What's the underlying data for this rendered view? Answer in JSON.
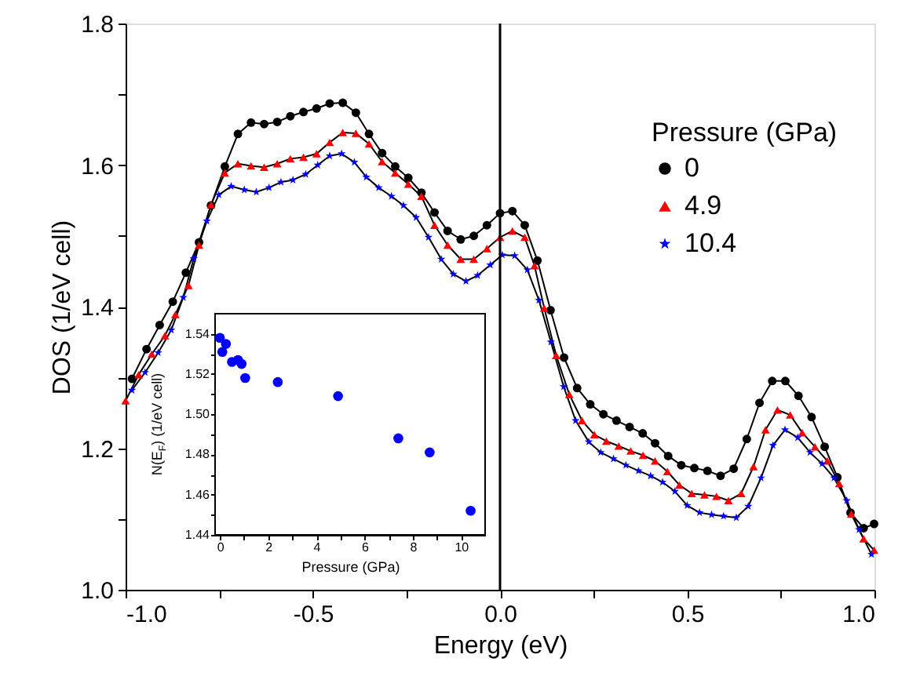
{
  "chart_data": [
    {
      "type": "line",
      "xlabel": "Energy (eV)",
      "ylabel": "DOS (1/eV cell)",
      "legend_title": "Pressure (GPa)",
      "legend": "right",
      "grid": false,
      "line_style": "solid",
      "xlim": [
        -1,
        1
      ],
      "ylim": [
        1,
        1.8
      ],
      "xticks": [
        {
          "value": -1,
          "label": "-1.0"
        },
        {
          "value": -0.75,
          "label": null
        },
        {
          "value": -0.5,
          "label": "-0.5"
        },
        {
          "value": -0.25,
          "label": null
        },
        {
          "value": 0,
          "label": "0.0"
        },
        {
          "value": 0.25,
          "label": null
        },
        {
          "value": 0.5,
          "label": "0.5"
        },
        {
          "value": 0.75,
          "label": null
        },
        {
          "value": 1,
          "label": "1.0"
        }
      ],
      "yticks": [
        {
          "value": 1,
          "label": "1.0"
        },
        {
          "value": 1.1,
          "label": null
        },
        {
          "value": 1.2,
          "label": "1.2"
        },
        {
          "value": 1.3,
          "label": null
        },
        {
          "value": 1.4,
          "label": "1.4"
        },
        {
          "value": 1.5,
          "label": null
        },
        {
          "value": 1.6,
          "label": "1.6"
        },
        {
          "value": 1.7,
          "label": null
        },
        {
          "value": 1.8,
          "label": "1.8"
        }
      ],
      "ref_lines": [
        {
          "axis": "x",
          "value": 0,
          "color": "#000000"
        }
      ],
      "series": [
        {
          "name": "0",
          "color": "#000000",
          "marker": "circle",
          "x": [
            -0.983,
            -0.944,
            -0.909,
            -0.874,
            -0.839,
            -0.804,
            -0.772,
            -0.735,
            -0.7,
            -0.665,
            -0.63,
            -0.595,
            -0.56,
            -0.525,
            -0.49,
            -0.455,
            -0.42,
            -0.385,
            -0.35,
            -0.315,
            -0.28,
            -0.245,
            -0.21,
            -0.175,
            -0.14,
            -0.105,
            -0.07,
            -0.035,
            0.0,
            0.033,
            0.066,
            0.1,
            0.135,
            0.171,
            0.206,
            0.241,
            0.276,
            0.311,
            0.346,
            0.381,
            0.414,
            0.449,
            0.484,
            0.519,
            0.554,
            0.589,
            0.624,
            0.659,
            0.693,
            0.727,
            0.762,
            0.797,
            0.832,
            0.867,
            0.901,
            0.936,
            0.971,
            0.999
          ],
          "values": [
            1.298,
            1.34,
            1.374,
            1.407,
            1.448,
            1.491,
            1.543,
            1.598,
            1.644,
            1.66,
            1.658,
            1.661,
            1.669,
            1.675,
            1.68,
            1.687,
            1.688,
            1.674,
            1.644,
            1.617,
            1.598,
            1.582,
            1.561,
            1.533,
            1.507,
            1.495,
            1.5,
            1.515,
            1.532,
            1.535,
            1.515,
            1.465,
            1.395,
            1.328,
            1.285,
            1.262,
            1.248,
            1.239,
            1.23,
            1.221,
            1.207,
            1.189,
            1.176,
            1.172,
            1.168,
            1.161,
            1.171,
            1.213,
            1.264,
            1.295,
            1.295,
            1.274,
            1.244,
            1.202,
            1.159,
            1.109,
            1.087,
            1.093
          ]
        },
        {
          "name": "4.9",
          "color": "#ff0000",
          "marker": "triangle",
          "x": [
            -1.0,
            -0.965,
            -0.93,
            -0.895,
            -0.867,
            -0.832,
            -0.804,
            -0.772,
            -0.735,
            -0.7,
            -0.665,
            -0.63,
            -0.595,
            -0.56,
            -0.525,
            -0.49,
            -0.455,
            -0.42,
            -0.385,
            -0.35,
            -0.315,
            -0.28,
            -0.245,
            -0.21,
            -0.175,
            -0.14,
            -0.105,
            -0.07,
            -0.035,
            0.0,
            0.033,
            0.066,
            0.092,
            0.118,
            0.15,
            0.185,
            0.219,
            0.252,
            0.284,
            0.317,
            0.349,
            0.382,
            0.414,
            0.447,
            0.479,
            0.512,
            0.546,
            0.578,
            0.61,
            0.644,
            0.677,
            0.709,
            0.741,
            0.775,
            0.807,
            0.841,
            0.874,
            0.906,
            0.938,
            0.971,
            0.999
          ],
          "values": [
            1.267,
            1.304,
            1.333,
            1.359,
            1.389,
            1.43,
            1.487,
            1.544,
            1.589,
            1.602,
            1.599,
            1.597,
            1.602,
            1.609,
            1.611,
            1.616,
            1.632,
            1.646,
            1.645,
            1.63,
            1.605,
            1.589,
            1.573,
            1.556,
            1.515,
            1.487,
            1.467,
            1.467,
            1.482,
            1.498,
            1.507,
            1.498,
            1.458,
            1.398,
            1.331,
            1.276,
            1.239,
            1.219,
            1.21,
            1.203,
            1.196,
            1.19,
            1.182,
            1.167,
            1.148,
            1.136,
            1.134,
            1.132,
            1.126,
            1.136,
            1.174,
            1.226,
            1.254,
            1.247,
            1.222,
            1.202,
            1.182,
            1.15,
            1.107,
            1.072,
            1.056
          ]
        },
        {
          "name": "10.4",
          "color": "#0000ff",
          "marker": "star",
          "x": [
            -0.983,
            -0.948,
            -0.913,
            -0.878,
            -0.846,
            -0.818,
            -0.783,
            -0.751,
            -0.718,
            -0.683,
            -0.651,
            -0.617,
            -0.585,
            -0.553,
            -0.519,
            -0.487,
            -0.455,
            -0.423,
            -0.389,
            -0.357,
            -0.324,
            -0.29,
            -0.258,
            -0.224,
            -0.191,
            -0.157,
            -0.125,
            -0.091,
            -0.06,
            -0.026,
            0.006,
            0.039,
            0.073,
            0.104,
            0.136,
            0.17,
            0.202,
            0.237,
            0.269,
            0.303,
            0.336,
            0.37,
            0.402,
            0.434,
            0.467,
            0.5,
            0.533,
            0.565,
            0.597,
            0.631,
            0.663,
            0.697,
            0.729,
            0.761,
            0.795,
            0.828,
            0.86,
            0.892,
            0.926,
            0.959,
            0.992
          ],
          "values": [
            1.282,
            1.307,
            1.335,
            1.367,
            1.413,
            1.468,
            1.521,
            1.558,
            1.57,
            1.565,
            1.562,
            1.568,
            1.576,
            1.579,
            1.587,
            1.6,
            1.613,
            1.616,
            1.604,
            1.583,
            1.568,
            1.556,
            1.543,
            1.526,
            1.498,
            1.467,
            1.446,
            1.436,
            1.444,
            1.459,
            1.473,
            1.472,
            1.452,
            1.409,
            1.35,
            1.287,
            1.239,
            1.209,
            1.194,
            1.185,
            1.176,
            1.168,
            1.161,
            1.152,
            1.139,
            1.119,
            1.109,
            1.106,
            1.104,
            1.102,
            1.118,
            1.158,
            1.204,
            1.226,
            1.215,
            1.194,
            1.178,
            1.158,
            1.126,
            1.085,
            1.05
          ]
        }
      ]
    },
    {
      "type": "scatter",
      "xlabel": "Pressure (GPa)",
      "ylabel": "N(E$_{F}$) (1/eV cell)",
      "grid": false,
      "marker": "circle",
      "xlim": [
        -0.2,
        11
      ],
      "ylim": [
        1.44,
        1.55
      ],
      "xticks": [
        0,
        {
          "value": 1,
          "label": null
        },
        2,
        {
          "value": 3,
          "label": null
        },
        4,
        {
          "value": 5,
          "label": null
        },
        6,
        {
          "value": 7,
          "label": null
        },
        8,
        {
          "value": 9,
          "label": null
        },
        10
      ],
      "yticks": [
        {
          "value": 1.44,
          "label": "1.44"
        },
        {
          "value": 1.45,
          "label": null
        },
        {
          "value": 1.46,
          "label": "1.46"
        },
        {
          "value": 1.47,
          "label": null
        },
        {
          "value": 1.48,
          "label": "1.48"
        },
        {
          "value": 1.49,
          "label": null
        },
        {
          "value": 1.5,
          "label": "1.50"
        },
        {
          "value": 1.51,
          "label": null
        },
        {
          "value": 1.52,
          "label": "1.52"
        },
        {
          "value": 1.53,
          "label": null
        },
        {
          "value": 1.54,
          "label": "1.54"
        }
      ],
      "series": [
        {
          "color": "#0000ff",
          "x": [
            0,
            0.1,
            0.25,
            0.5,
            0.75,
            0.9,
            1.05,
            2.4,
            4.9,
            7.4,
            8.7,
            10.4
          ],
          "values": [
            1.538,
            1.531,
            1.535,
            1.526,
            1.527,
            1.525,
            1.518,
            1.516,
            1.509,
            1.488,
            1.481,
            1.452
          ]
        }
      ]
    }
  ]
}
